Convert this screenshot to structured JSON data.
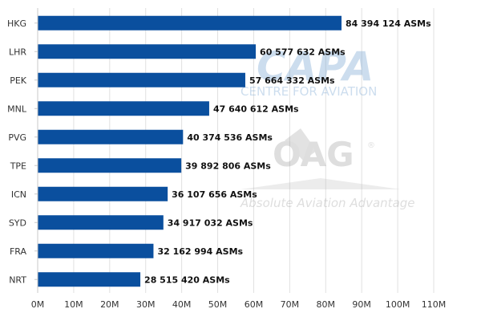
{
  "chart_data": {
    "type": "bar",
    "orientation": "horizontal",
    "categories": [
      "HKG",
      "LHR",
      "PEK",
      "MNL",
      "PVG",
      "TPE",
      "ICN",
      "SYD",
      "FRA",
      "NRT"
    ],
    "values": [
      84394124,
      60577632,
      57664332,
      47640612,
      40374536,
      39892806,
      36107656,
      34917032,
      32162994,
      28515420
    ],
    "data_labels": [
      "84 394 124 ASMs",
      "60 577 632 ASMs",
      "57 664 332 ASMs",
      "47 640 612 ASMs",
      "40 374 536 ASMs",
      "39 892 806 ASMs",
      "36 107 656 ASMs",
      "34 917 032 ASMs",
      "32 162 994 ASMs",
      "28 515 420 ASMs"
    ],
    "xlim": [
      0,
      110000000
    ],
    "xticks": [
      0,
      10000000,
      20000000,
      30000000,
      40000000,
      50000000,
      60000000,
      70000000,
      80000000,
      90000000,
      100000000,
      110000000
    ],
    "xtick_labels": [
      "0M",
      "10M",
      "20M",
      "30M",
      "40M",
      "50M",
      "60M",
      "70M",
      "80M",
      "90M",
      "100M",
      "110M"
    ],
    "grid": "vertical",
    "bar_color": "#0a4f9e"
  },
  "watermarks": {
    "capa_logo": "CAPA",
    "capa_subtitle": "CENTRE FOR AVIATION",
    "oag_logo": "OAG",
    "oag_registered": "®",
    "oag_tagline": "Absolute Aviation Advantage"
  }
}
